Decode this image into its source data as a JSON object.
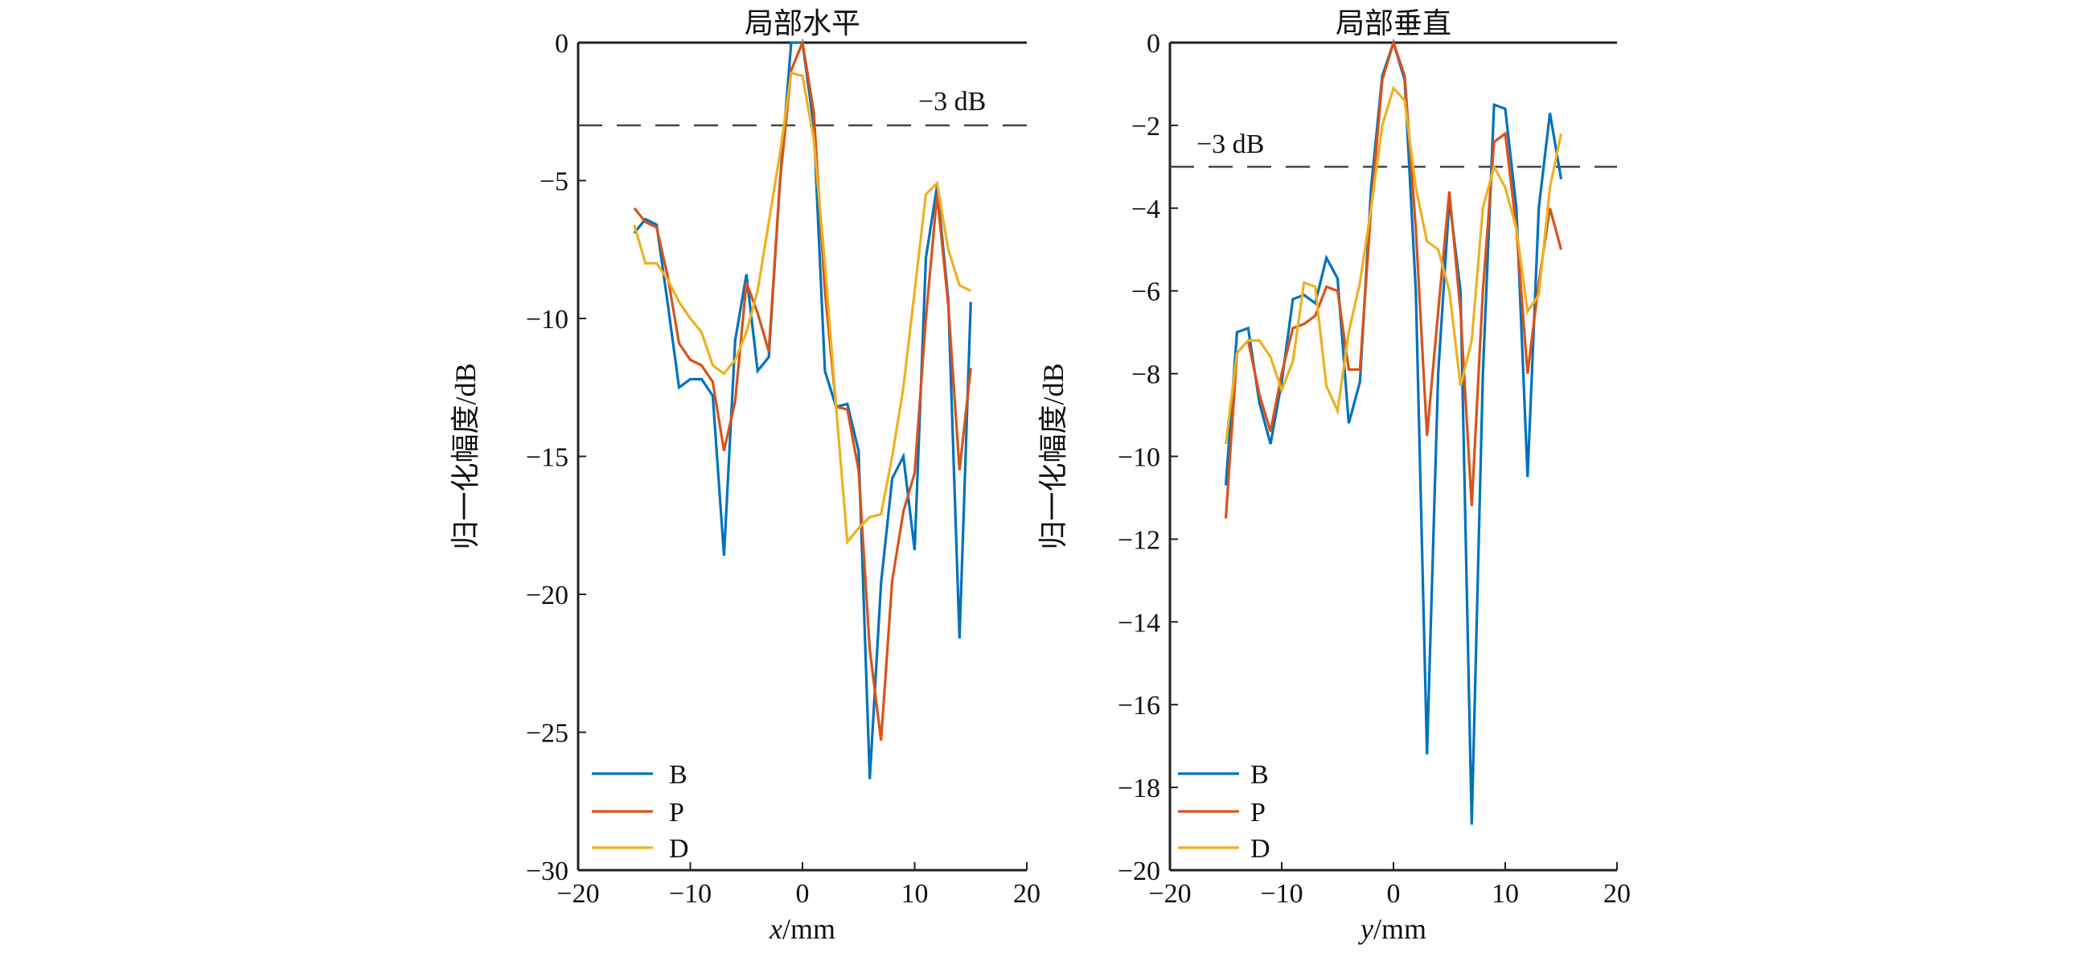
{
  "chart_data": [
    {
      "type": "line",
      "title": "局部水平",
      "xlabel_var": "x",
      "xlabel_unit": "/mm",
      "ylabel": "归一化幅度/dB",
      "xlim": [
        -20,
        20
      ],
      "ylim": [
        -30,
        0
      ],
      "xticks": [
        -20,
        -10,
        0,
        10,
        20
      ],
      "yticks": [
        0,
        -5,
        -10,
        -15,
        -20,
        -25,
        -30
      ],
      "reference_line": {
        "y": -3,
        "label": "−3 dB",
        "style": "dashed"
      },
      "legend_position": "bottom-left",
      "x": [
        -15,
        -14,
        -13,
        -12,
        -11,
        -10,
        -9,
        -8,
        -7,
        -6,
        -5,
        -4,
        -3,
        -2,
        -1,
        0,
        1,
        2,
        3,
        4,
        5,
        6,
        7,
        8,
        9,
        10,
        11,
        12,
        13,
        14,
        15
      ],
      "series": [
        {
          "name": "B",
          "color": "#0072BD",
          "values": [
            -6.9,
            -6.4,
            -6.6,
            -9.5,
            -12.5,
            -12.2,
            -12.2,
            -12.8,
            -18.6,
            -10.8,
            -8.4,
            -11.9,
            -11.4,
            -5,
            0,
            0,
            -3,
            -11.9,
            -13.2,
            -13.1,
            -14.8,
            -26.7,
            -19.6,
            -15.8,
            -15,
            -18.4,
            -7.8,
            -5.2,
            -9.3,
            -21.6,
            -9.4
          ]
        },
        {
          "name": "P",
          "color": "#D95319",
          "values": [
            -6,
            -6.5,
            -6.7,
            -8.5,
            -10.9,
            -11.5,
            -11.7,
            -12.3,
            -14.8,
            -13,
            -8.7,
            -9.8,
            -11.2,
            -5,
            -1,
            0,
            -2.5,
            -9,
            -13.2,
            -13.3,
            -15.5,
            -22,
            -25.3,
            -19.5,
            -17,
            -15.6,
            -10,
            -5.5,
            -9.5,
            -15.5,
            -11.8
          ]
        },
        {
          "name": "D",
          "color": "#EDB120",
          "values": [
            -6.6,
            -8,
            -8,
            -8.6,
            -9.4,
            -10,
            -10.5,
            -11.7,
            -12,
            -11.5,
            -10.5,
            -9,
            -6.5,
            -4,
            -1.1,
            -1.2,
            -3.5,
            -8,
            -13.2,
            -18.1,
            -17.6,
            -17.2,
            -17.1,
            -15,
            -12.5,
            -9,
            -5.5,
            -5.1,
            -7.5,
            -8.8,
            -9
          ]
        }
      ]
    },
    {
      "type": "line",
      "title": "局部垂直",
      "xlabel_var": "y",
      "xlabel_unit": "/mm",
      "ylabel": "归一化幅度/dB",
      "xlim": [
        -20,
        20
      ],
      "ylim": [
        -20,
        0
      ],
      "xticks": [
        -20,
        -10,
        0,
        10,
        20
      ],
      "yticks": [
        0,
        -2,
        -4,
        -6,
        -8,
        -10,
        -12,
        -14,
        -16,
        -18,
        -20
      ],
      "reference_line": {
        "y": -3,
        "label": "−3 dB",
        "style": "dashed"
      },
      "legend_position": "bottom-left",
      "x": [
        -15,
        -14,
        -13,
        -12,
        -11,
        -10,
        -9,
        -8,
        -7,
        -6,
        -5,
        -4,
        -3,
        -2,
        -1,
        0,
        1,
        2,
        3,
        4,
        5,
        6,
        7,
        8,
        9,
        10,
        11,
        12,
        13,
        14,
        15
      ],
      "series": [
        {
          "name": "B",
          "color": "#0072BD",
          "values": [
            -10.7,
            -7,
            -6.9,
            -8.7,
            -9.7,
            -8.2,
            -6.2,
            -6.1,
            -6.3,
            -5.2,
            -5.7,
            -9.2,
            -8.2,
            -3.5,
            -0.8,
            0,
            -0.9,
            -6,
            -17.2,
            -8,
            -3.8,
            -6,
            -18.9,
            -8,
            -1.5,
            -1.6,
            -4,
            -10.5,
            -4,
            -1.7,
            -3.3
          ]
        },
        {
          "name": "P",
          "color": "#D95319",
          "values": [
            -11.5,
            -7.5,
            -7.2,
            -8.5,
            -9.4,
            -8,
            -6.9,
            -6.8,
            -6.6,
            -5.9,
            -6,
            -7.9,
            -7.9,
            -4,
            -0.9,
            0,
            -0.8,
            -4.5,
            -9.5,
            -6.5,
            -3.6,
            -6.5,
            -11.2,
            -6,
            -2.4,
            -2.2,
            -4.5,
            -8,
            -5.8,
            -4,
            -5
          ]
        },
        {
          "name": "D",
          "color": "#EDB120",
          "values": [
            -9.7,
            -7.5,
            -7.2,
            -7.2,
            -7.6,
            -8.4,
            -7.7,
            -5.8,
            -5.9,
            -8.3,
            -8.9,
            -7,
            -5.8,
            -4,
            -2,
            -1.1,
            -1.4,
            -3.5,
            -4.8,
            -5,
            -6,
            -8.3,
            -7.2,
            -4,
            -3,
            -3.5,
            -4.5,
            -6.5,
            -6.1,
            -3.5,
            -2.2
          ]
        }
      ]
    }
  ]
}
